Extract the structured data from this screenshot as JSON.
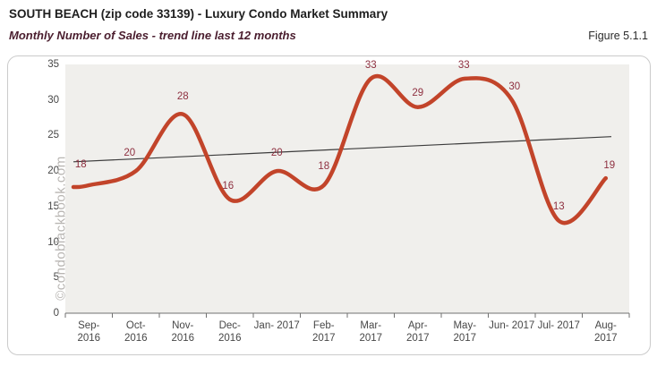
{
  "header": {
    "title": "SOUTH BEACH (zip code 33139) - Luxury Condo Market Summary",
    "subtitle": "Monthly Number of Sales - trend line last 12 months",
    "figure_label": "Figure 5.1.1"
  },
  "watermark": "©condoblackbook.com",
  "colors": {
    "line": "#c2442a",
    "data_label": "#8e3040",
    "trend_line": "#3c3c3c",
    "plot_bg": "#f0efec",
    "axis": "#707070",
    "axis_text": "#474747",
    "card_border": "#cbcbcb",
    "subtitle_text": "#4a1d2e",
    "watermark_text": "#b9b6b3"
  },
  "chart_data": {
    "type": "line",
    "title": "SOUTH BEACH (zip code 33139) - Luxury Condo Market Summary",
    "subtitle": "Monthly Number of Sales - trend line last 12 months",
    "categories": [
      "Sep-2016",
      "Oct-2016",
      "Nov-2016",
      "Dec-2016",
      "Jan-2017",
      "Feb-2017",
      "Mar-2017",
      "Apr-2017",
      "May-2017",
      "Jun-2017",
      "Jul-2017",
      "Aug-2017"
    ],
    "category_display": [
      [
        "Sep-",
        "2016"
      ],
      [
        "Oct-",
        "2016"
      ],
      [
        "Nov-",
        "2016"
      ],
      [
        "Dec-",
        "2016"
      ],
      [
        "Jan- 2017",
        ""
      ],
      [
        "Feb-",
        "2017"
      ],
      [
        "Mar-",
        "2017"
      ],
      [
        "Apr-",
        "2017"
      ],
      [
        "May-",
        "2017"
      ],
      [
        "Jun- 2017",
        ""
      ],
      [
        "Jul- 2017",
        ""
      ],
      [
        "Aug-",
        "2017"
      ]
    ],
    "series": [
      {
        "name": "Monthly Number of Sales",
        "values": [
          18,
          20,
          28,
          16,
          20,
          18,
          33,
          29,
          33,
          30,
          13,
          19
        ]
      }
    ],
    "trendline": {
      "label": "trend line last 12 months",
      "start_value": 21.4,
      "end_value": 24.8
    },
    "xlabel": "",
    "ylabel": "",
    "ylim": [
      0,
      35
    ],
    "ytick_step": 5,
    "smooth": true,
    "grid": false,
    "legend": "none"
  }
}
